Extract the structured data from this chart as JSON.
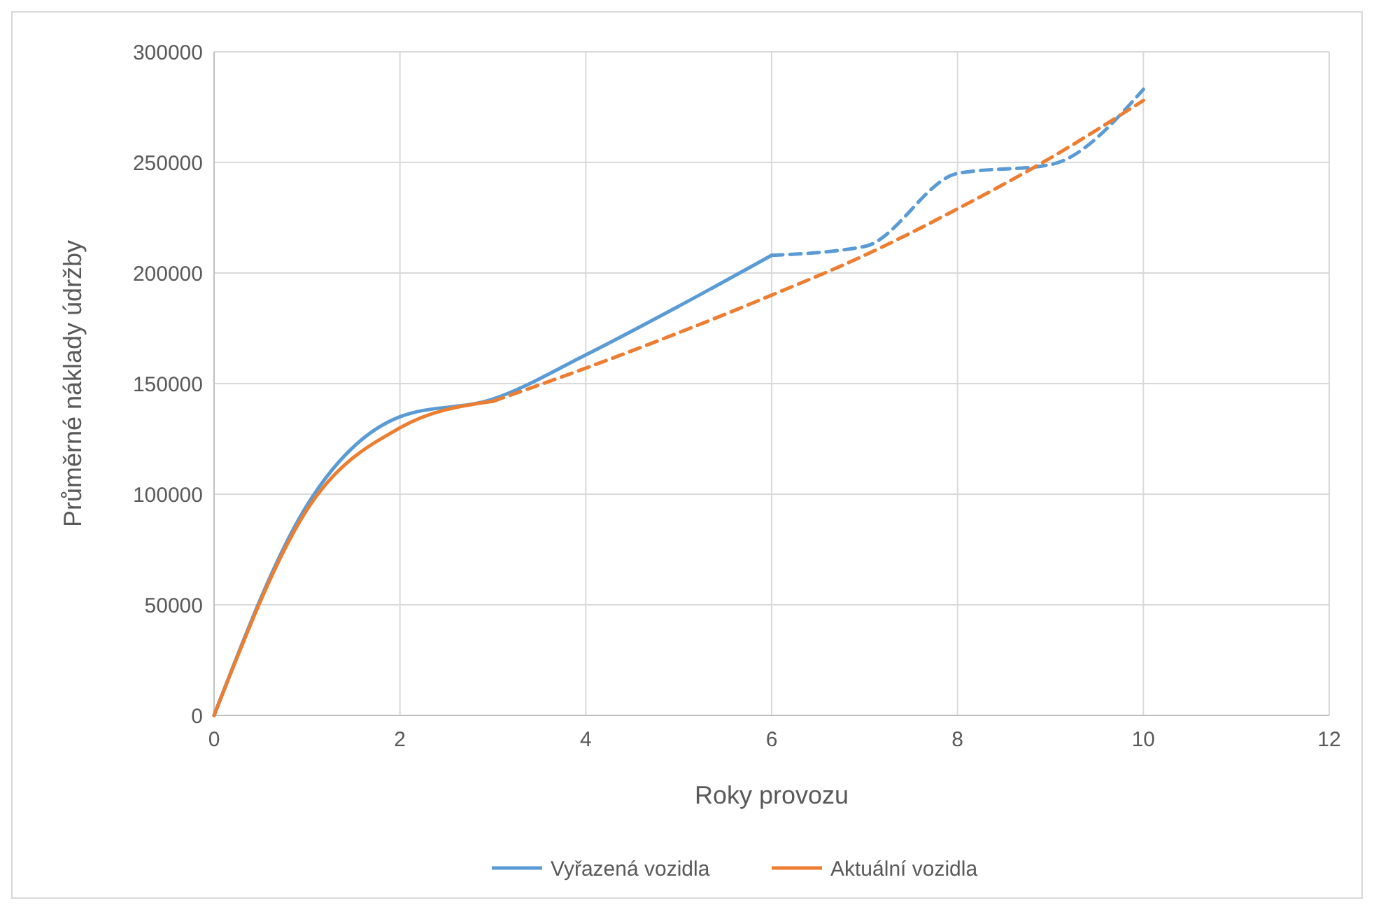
{
  "chart_data": {
    "type": "line",
    "xlabel": "Roky provozu",
    "ylabel": "Průměrné náklady údržby",
    "xlim": [
      0,
      12
    ],
    "xticks": [
      0,
      2,
      4,
      6,
      8,
      10,
      12
    ],
    "ylim": [
      0,
      300000
    ],
    "yticks": [
      0,
      50000,
      100000,
      150000,
      200000,
      250000,
      300000
    ],
    "grid": true,
    "legend": "bottom",
    "marker": "none",
    "series": [
      {
        "name": "Vyřazená vozidla",
        "color": "#5b9bd5",
        "line_style": "solid",
        "x": [
          0,
          1,
          2,
          3,
          4,
          5,
          6
        ],
        "values": [
          0,
          95000,
          135000,
          143000,
          163000,
          185000,
          208000
        ]
      },
      {
        "name": "Aktuální vozidla",
        "color": "#ed7d31",
        "line_style": "solid",
        "x": [
          0,
          1,
          2,
          3
        ],
        "values": [
          0,
          93000,
          130000,
          142000
        ]
      },
      {
        "color": "#5b9bd5",
        "line_style": "dashed",
        "x": [
          6,
          7,
          8,
          9,
          10
        ],
        "values": [
          208000,
          212000,
          245000,
          249000,
          283000
        ]
      },
      {
        "color": "#ed7d31",
        "line_style": "dashed",
        "x": [
          3,
          4,
          5,
          6,
          7,
          8,
          9,
          10
        ],
        "values": [
          142000,
          157000,
          173000,
          190000,
          208000,
          229000,
          252000,
          278000
        ]
      }
    ]
  }
}
